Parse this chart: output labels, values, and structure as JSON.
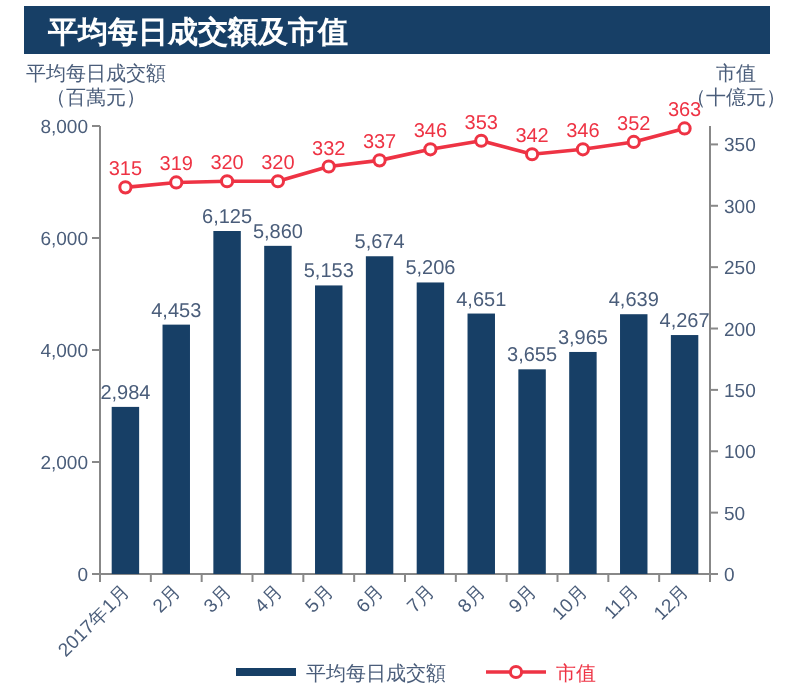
{
  "chart_data": {
    "type": "bar",
    "title": "平均每日成交額及市值",
    "ylabel": "平均每日成交額（百萬元）",
    "y2label": "市值（十億元）",
    "categories": [
      "2017年1月",
      "2月",
      "3月",
      "4月",
      "5月",
      "6月",
      "7月",
      "8月",
      "9月",
      "10月",
      "11月",
      "12月"
    ],
    "series": [
      {
        "name": "平均每日成交額",
        "color": "#173f66",
        "values": [
          2984,
          4453,
          6125,
          5860,
          5153,
          5674,
          5206,
          4651,
          3655,
          3965,
          4639,
          4267
        ],
        "value_labels": [
          "2,984",
          "4,453",
          "6,125",
          "5,860",
          "5,153",
          "5,674",
          "5,206",
          "4,651",
          "3,655",
          "3,965",
          "4,639",
          "4,267"
        ]
      },
      {
        "name": "市值",
        "type": "line",
        "axis": "y2",
        "color": "#ee3344",
        "marker": "circle",
        "values": [
          315,
          319,
          320,
          320,
          332,
          337,
          346,
          353,
          342,
          346,
          352,
          363
        ]
      }
    ],
    "ylim": [
      0,
      8000
    ],
    "yticks": [
      {
        "value": 0,
        "label": "0"
      },
      {
        "value": 2000,
        "label": "2,000"
      },
      {
        "value": 4000,
        "label": "4,000"
      },
      {
        "value": 6000,
        "label": "6,000"
      },
      {
        "value": 8000,
        "label": "8,000"
      }
    ],
    "y2lim": [
      0,
      365
    ],
    "y2ticks": [
      0,
      50,
      100,
      150,
      200,
      250,
      300,
      350
    ],
    "data_labels": true,
    "grid": false,
    "legend": "bottom"
  }
}
